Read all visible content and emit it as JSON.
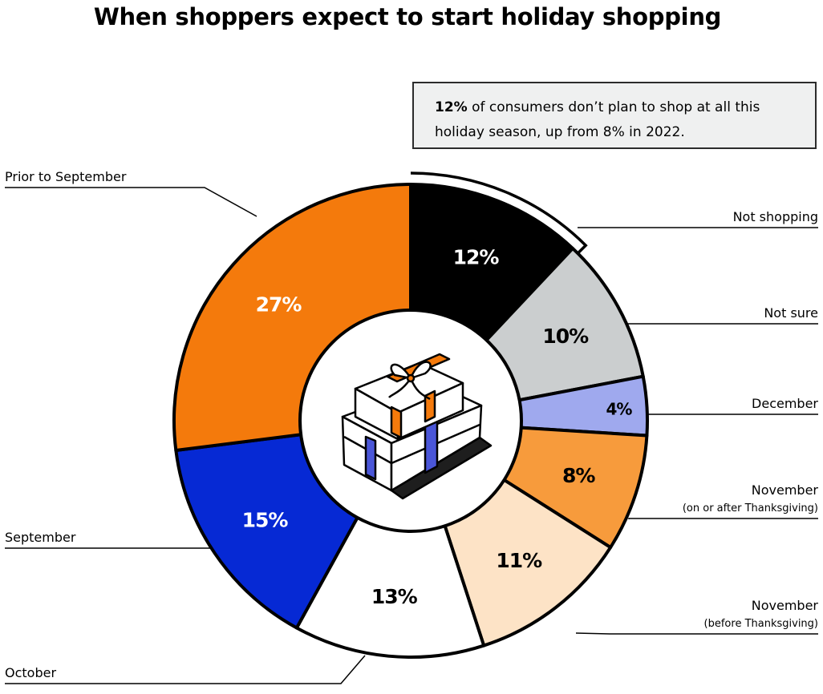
{
  "chart_data": {
    "type": "pie",
    "title": "When shoppers expect to start holiday shopping",
    "slices": [
      {
        "name": "Not shopping",
        "value": 12,
        "label": "12%",
        "color": "#000000",
        "text_color": "#ffffff"
      },
      {
        "name": "Not sure",
        "value": 10,
        "label": "10%",
        "color": "#cbcecf",
        "text_color": "#000000"
      },
      {
        "name": "December",
        "value": 4,
        "label": "4%",
        "color": "#9fa9ee",
        "text_color": "#000000"
      },
      {
        "name": "November",
        "subname": "(on or after Thanksgiving)",
        "value": 8,
        "label": "8%",
        "color": "#f79b3c",
        "text_color": "#000000"
      },
      {
        "name": "November",
        "subname": "(before Thanksgiving)",
        "value": 11,
        "label": "11%",
        "color": "#fde3c6",
        "text_color": "#000000"
      },
      {
        "name": "October",
        "value": 13,
        "label": "13%",
        "color": "#ffffff",
        "text_color": "#000000"
      },
      {
        "name": "September",
        "value": 15,
        "label": "15%",
        "color": "#0629d4",
        "text_color": "#ffffff"
      },
      {
        "name": "Prior to September",
        "value": 27,
        "label": "27%",
        "color": "#f47a0c",
        "text_color": "#ffffff"
      }
    ]
  },
  "callout": {
    "bold": "12%",
    "text": " of consumers don’t plan to shop at all this holiday season, up from 8% in 2022."
  }
}
